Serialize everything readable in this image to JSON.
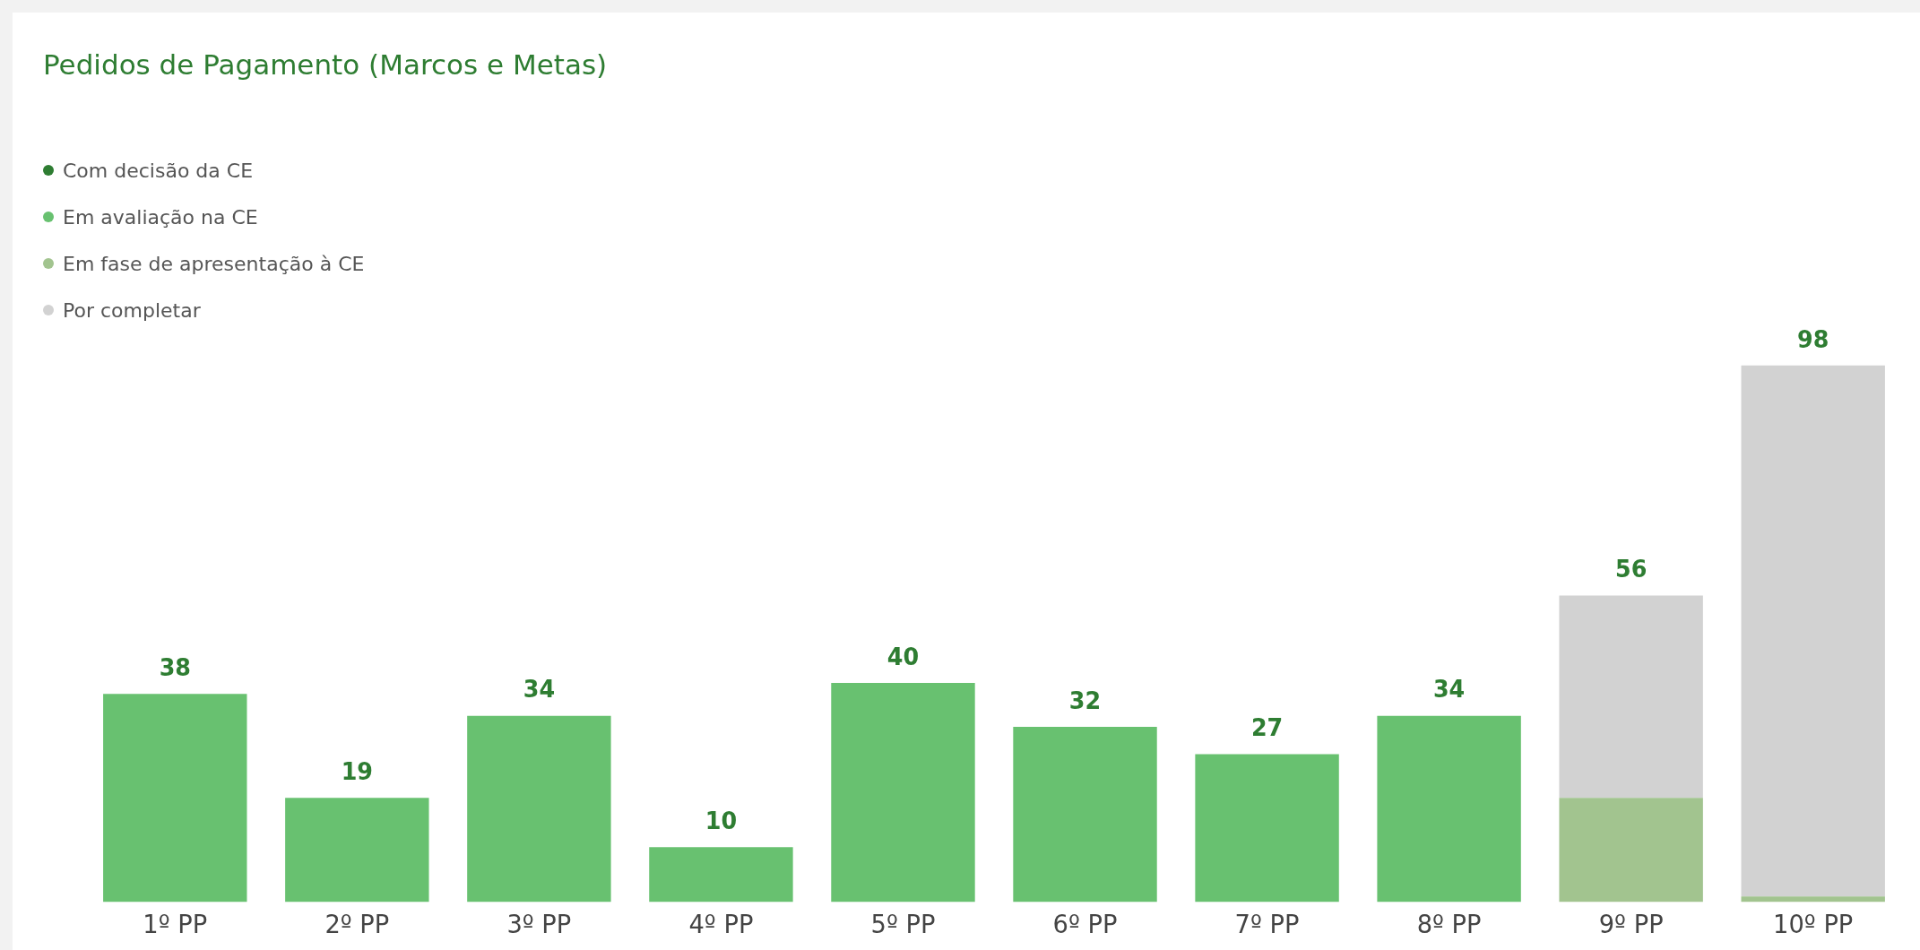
{
  "chart_data": {
    "type": "bar",
    "title": "Pedidos de Pagamento (Marcos e Metas)",
    "stacked": true,
    "legend": "top left",
    "categories": [
      "1º PP",
      "2º PP",
      "3º PP",
      "4º PP",
      "5º PP",
      "6º PP",
      "7º PP",
      "8º PP",
      "9º PP",
      "10º PP"
    ],
    "series": [
      {
        "name": "Com decisão da CE",
        "color": "#2e7d32",
        "values": [
          null,
          null,
          null,
          null,
          null,
          null,
          null,
          null,
          null,
          null
        ]
      },
      {
        "name": "Em avaliação na CE",
        "color": "#68c170",
        "values": [
          38,
          19,
          34,
          10,
          40,
          32,
          27,
          34,
          null,
          null
        ],
        "value_labels": [
          "38",
          "19",
          "34",
          "10",
          "40",
          "32",
          "27",
          "34",
          null,
          null
        ]
      },
      {
        "name": "Em fase de apresentação à CE",
        "color": "#a2c48f",
        "values": [
          null,
          null,
          null,
          null,
          null,
          null,
          null,
          null,
          19,
          1
        ]
      },
      {
        "name": "Por completar",
        "color": "#d2d2d2",
        "values": [
          null,
          null,
          null,
          null,
          null,
          null,
          null,
          null,
          37,
          97
        ]
      }
    ],
    "totals": [
      null,
      null,
      null,
      null,
      null,
      null,
      null,
      null,
      "56",
      "98"
    ]
  }
}
